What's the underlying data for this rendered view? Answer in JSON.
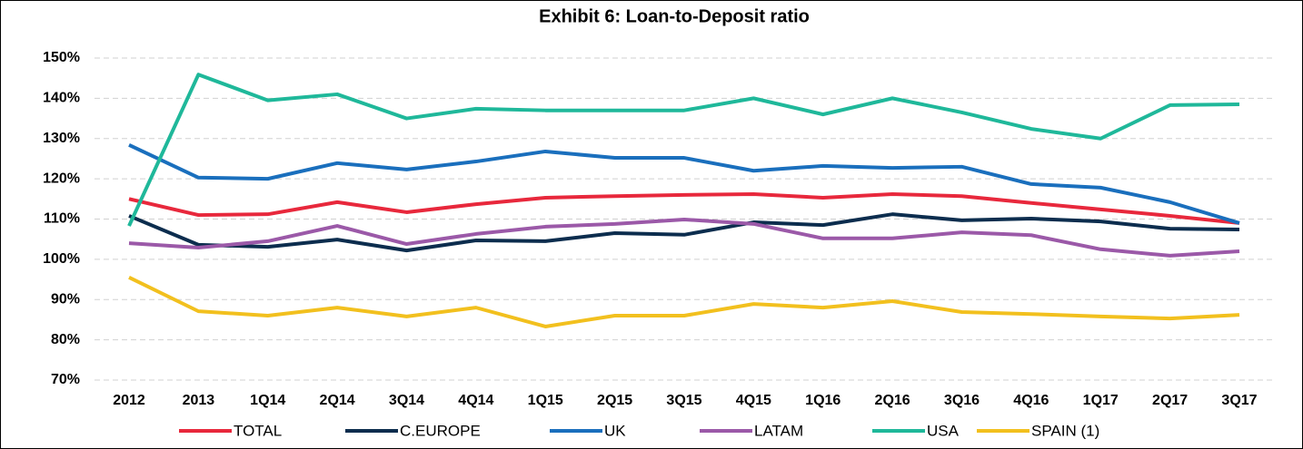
{
  "chart_data": {
    "type": "line",
    "title": "Exhibit 6: Loan-to-Deposit ratio",
    "categories": [
      "2012",
      "2013",
      "1Q14",
      "2Q14",
      "3Q14",
      "4Q14",
      "1Q15",
      "2Q15",
      "3Q15",
      "4Q15",
      "1Q16",
      "2Q16",
      "3Q16",
      "4Q16",
      "1Q17",
      "2Q17",
      "3Q17"
    ],
    "series": [
      {
        "name": "TOTAL",
        "color": "#e8283c",
        "values": [
          115,
          111,
          111.2,
          114.2,
          111.7,
          113.7,
          115.3,
          115.7,
          116,
          116.2,
          115.3,
          116.2,
          115.7,
          114,
          112.4,
          110.8,
          109
        ]
      },
      {
        "name": "C.EUROPE",
        "color": "#0c2d4e",
        "values": [
          110.8,
          103.6,
          103.1,
          104.9,
          102.2,
          104.7,
          104.5,
          106.5,
          106.1,
          109.2,
          108.5,
          111.2,
          109.7,
          110.1,
          109.4,
          107.6,
          107.4
        ]
      },
      {
        "name": "UK",
        "color": "#1a6fbd",
        "values": [
          128.4,
          120.3,
          120,
          123.9,
          122.3,
          124.3,
          126.8,
          125.2,
          125.2,
          122,
          123.2,
          122.7,
          123,
          118.7,
          117.8,
          114.2,
          109
        ]
      },
      {
        "name": "LATAM",
        "color": "#9b59a8",
        "values": [
          104,
          102.9,
          104.5,
          108.3,
          103.8,
          106.3,
          108.1,
          108.8,
          109.9,
          108.8,
          105.2,
          105.2,
          106.7,
          106,
          102.5,
          100.9,
          102
        ]
      },
      {
        "name": "USA",
        "color": "#1fb89a",
        "values": [
          108.3,
          145.9,
          139.5,
          141,
          135,
          137.4,
          137,
          137,
          137,
          140,
          136,
          140,
          136.5,
          132.4,
          130,
          138.3,
          138.5
        ]
      },
      {
        "name": "SPAIN (1)",
        "color": "#f2c01e",
        "values": [
          95.5,
          87.1,
          86,
          88,
          85.8,
          88,
          83.3,
          86,
          86,
          88.9,
          88,
          89.6,
          86.9,
          86.4,
          85.8,
          85.3,
          86.2
        ]
      }
    ],
    "ylim": [
      70,
      150
    ],
    "yticks": [
      {
        "value": 70,
        "label": "70%"
      },
      {
        "value": 80,
        "label": "80%"
      },
      {
        "value": 90,
        "label": "90%"
      },
      {
        "value": 100,
        "label": "100%"
      },
      {
        "value": 110,
        "label": "110%"
      },
      {
        "value": 120,
        "label": "120%"
      },
      {
        "value": 130,
        "label": "130%"
      },
      {
        "value": 140,
        "label": "140%"
      },
      {
        "value": 150,
        "label": "150%"
      }
    ],
    "grid": true,
    "legend": "bottom"
  }
}
